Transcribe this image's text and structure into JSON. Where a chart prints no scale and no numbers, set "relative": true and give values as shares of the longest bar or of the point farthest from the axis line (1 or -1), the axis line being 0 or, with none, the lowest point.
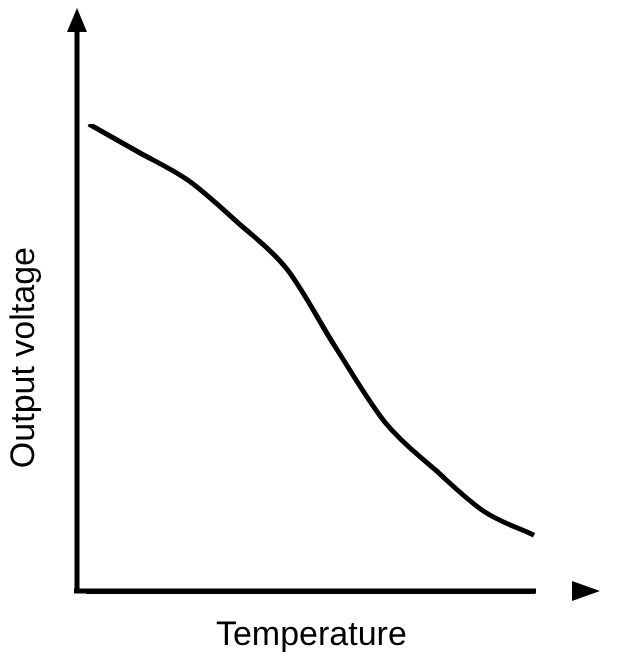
{
  "chart_data": {
    "type": "line",
    "relative": true,
    "xlabel": "Temperature",
    "ylabel": "Output voltage",
    "categories": [
      null,
      null,
      null,
      null,
      null,
      null,
      null,
      null,
      null,
      null
    ],
    "series": [
      {
        "color": "#000000",
        "values": [
          1,
          0.94,
          0.88,
          0.79,
          0.69,
          0.52,
          0.36,
          0.26,
          0.17,
          0.12
        ]
      }
    ],
    "grid": false,
    "legend": false,
    "marker": "none",
    "line_style": "solid"
  }
}
